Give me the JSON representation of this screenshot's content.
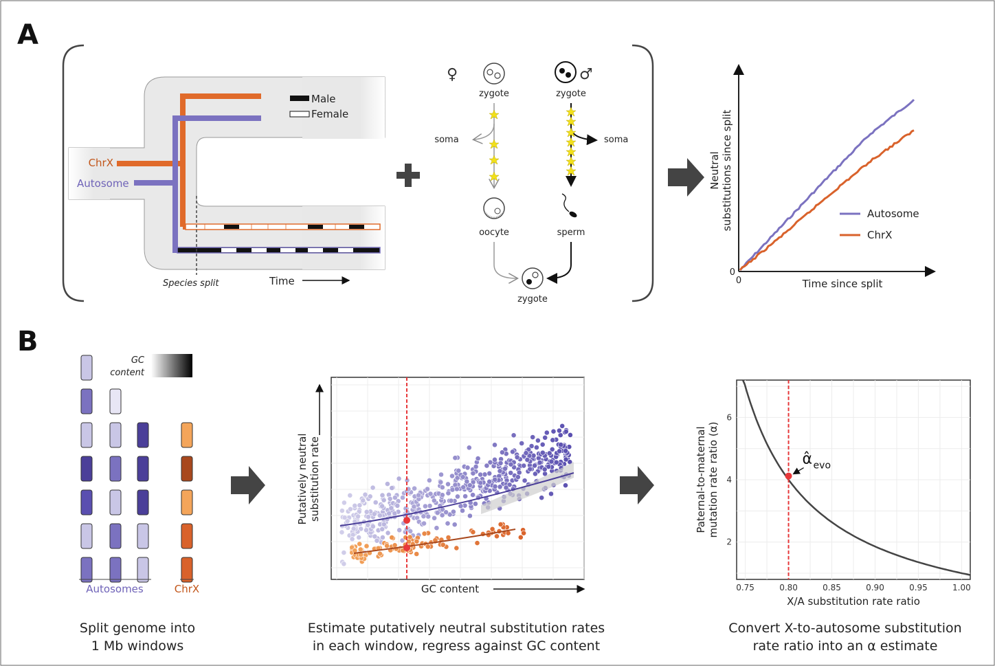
{
  "panel_a": {
    "letter": "A",
    "legend_male": "Male",
    "legend_female": "Female",
    "chrx_label": "ChrX",
    "autosome_label": "Autosome",
    "species_split": "Species split",
    "time_label": "Time",
    "female_symbol": "♀",
    "male_symbol": "♂",
    "zygote_left": "zygote",
    "zygote_right": "zygote",
    "soma_left": "soma",
    "soma_right": "soma",
    "oocyte": "oocyte",
    "sperm": "sperm",
    "zygote_bottom": "zygote",
    "plus": "+",
    "colors": {
      "chrx": "#e06a2a",
      "autosome": "#7b72c0",
      "lineage_bg": "#e9e9e9",
      "star": "#f2e01b"
    }
  },
  "panel_b": {
    "letter": "B",
    "gc_content_line1": "GC",
    "gc_content_line2": "content",
    "autosomes_label": "Autosomes",
    "chrx_label": "ChrX",
    "caption_left_1": "Split genome into",
    "caption_left_2": "1 Mb windows",
    "caption_mid_1": "Estimate putatively neutral substitution rates",
    "caption_mid_2": "in each window, regress against GC content",
    "caption_right_1": "Convert X-to-autosome substitution",
    "caption_right_2": "rate ratio into an α estimate",
    "alpha_hat": "α̂",
    "alpha_sub": "evo"
  },
  "chart_data": [
    {
      "type": "line",
      "ylabel": "Neutral\nsubstitutions since split",
      "xlabel": "Time since split",
      "x_origin_label": "0",
      "y_origin_label": "0",
      "series": [
        {
          "name": "Autosome",
          "color": "#7b72c0",
          "x": [
            0,
            0.25,
            0.5,
            0.75,
            1.0
          ],
          "y": [
            0,
            0.27,
            0.54,
            0.8,
            1.0
          ]
        },
        {
          "name": "ChrX",
          "color": "#d9622b",
          "x": [
            0,
            0.25,
            0.5,
            0.75,
            1.0
          ],
          "y": [
            0,
            0.21,
            0.43,
            0.64,
            0.82
          ]
        }
      ]
    },
    {
      "type": "scatter",
      "xlabel": "GC content",
      "ylabel": "Putatively neutral\nsubstitution rate",
      "series": [
        {
          "name": "Autosome",
          "color": "#6f63b8"
        },
        {
          "name": "ChrX",
          "color": "#e8872f"
        }
      ]
    },
    {
      "type": "line",
      "xlabel": "X/A substitution rate ratio",
      "ylabel": "Paternal-to-maternal\nmutation rate ratio (α)",
      "xlim": [
        0.74,
        1.01
      ],
      "ylim": [
        0.8,
        7.2
      ],
      "x_ticks": [
        "0.75",
        "0.80",
        "0.85",
        "0.90",
        "0.95",
        "1.00"
      ],
      "y_ticks": [
        "2",
        "4",
        "6"
      ],
      "estimate": {
        "x": 0.8,
        "y": 4.12
      },
      "curve": {
        "formula": "alpha = (4 - 3*r) / (3*r - 2)",
        "x_start": 0.75,
        "x_end": 1.01
      }
    }
  ]
}
